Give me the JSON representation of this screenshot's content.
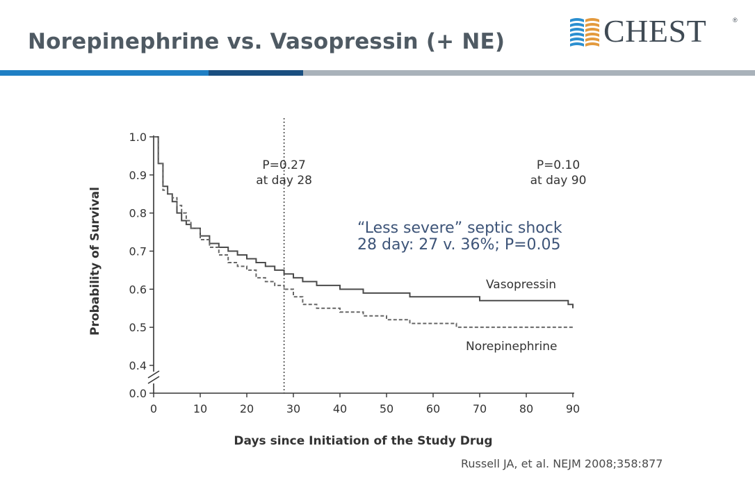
{
  "slide": {
    "title": "Norepinephrine vs. Vasopressin (+ NE)",
    "logo_text": "CHEST",
    "logo_mark": "®",
    "citation": "Russell JA, et al. NEJM 2008;358:877"
  },
  "colors": {
    "title": "#4f5a63",
    "rule_blue": "#1f7fc4",
    "rule_dark": "#1a4f80",
    "rule_gray": "#a9b2ba",
    "logo_blue": "#2b8fd0",
    "logo_orange": "#e39a3e",
    "annotation": "#3d5478",
    "vasopressin": "#4a4a4a",
    "norepinephrine": "#666666"
  },
  "chart_data": {
    "type": "line",
    "title": "",
    "xlabel": "Days since Initiation of the Study Drug",
    "ylabel": "Probability of Survival",
    "xlim": [
      0,
      90
    ],
    "ylim": [
      0.4,
      1.0
    ],
    "y_axis_break": true,
    "x_ticks": [
      "0",
      "10",
      "20",
      "30",
      "40",
      "50",
      "60",
      "70",
      "80",
      "90"
    ],
    "x_tick_values": [
      0,
      10,
      20,
      30,
      40,
      50,
      60,
      70,
      80,
      90
    ],
    "y_ticks": [
      "1.0",
      "0.9",
      "0.8",
      "0.7",
      "0.6",
      "0.5",
      "0.4",
      "0.0"
    ],
    "y_tick_values": [
      1.0,
      0.9,
      0.8,
      0.7,
      0.6,
      0.5,
      0.4
    ],
    "y_zero_label": "0.0",
    "series": [
      {
        "name": "Vasopressin",
        "style": "solid",
        "x": [
          0,
          1,
          2,
          3,
          4,
          5,
          6,
          7,
          8,
          10,
          12,
          14,
          16,
          18,
          20,
          22,
          24,
          26,
          28,
          30,
          32,
          35,
          40,
          45,
          50,
          55,
          60,
          65,
          70,
          75,
          80,
          85,
          89,
          90
        ],
        "y": [
          1.0,
          0.93,
          0.87,
          0.85,
          0.83,
          0.8,
          0.78,
          0.77,
          0.76,
          0.74,
          0.72,
          0.71,
          0.7,
          0.69,
          0.68,
          0.67,
          0.66,
          0.65,
          0.64,
          0.63,
          0.62,
          0.61,
          0.6,
          0.59,
          0.59,
          0.58,
          0.58,
          0.58,
          0.57,
          0.57,
          0.57,
          0.57,
          0.56,
          0.55
        ]
      },
      {
        "name": "Norepinephrine",
        "style": "dashed",
        "x": [
          0,
          1,
          2,
          3,
          4,
          5,
          6,
          7,
          8,
          10,
          12,
          14,
          16,
          18,
          20,
          22,
          24,
          26,
          28,
          30,
          32,
          35,
          40,
          45,
          50,
          55,
          60,
          65,
          70,
          75,
          80,
          85,
          90
        ],
        "y": [
          1.0,
          0.93,
          0.86,
          0.85,
          0.84,
          0.82,
          0.8,
          0.78,
          0.76,
          0.73,
          0.71,
          0.69,
          0.67,
          0.66,
          0.65,
          0.63,
          0.62,
          0.61,
          0.6,
          0.58,
          0.56,
          0.55,
          0.54,
          0.53,
          0.52,
          0.51,
          0.51,
          0.5,
          0.5,
          0.5,
          0.5,
          0.5,
          0.5
        ]
      }
    ],
    "reference_line": {
      "x": 28,
      "style": "dotted"
    },
    "annotations": [
      {
        "id": "p28",
        "lines": [
          "P=0.27",
          "at day 28"
        ],
        "x": 28,
        "y": 0.95
      },
      {
        "id": "p90",
        "lines": [
          "P=0.10",
          "at day 90"
        ],
        "x": 80,
        "y": 0.95
      },
      {
        "id": "severe",
        "lines": [
          "“Less severe” septic shock",
          "28 day: 27 v. 36%; P=0.05"
        ],
        "x": 44,
        "y": 0.82
      },
      {
        "id": "vaso-label",
        "lines": [
          "Vasopressin"
        ],
        "x": 80,
        "y": 0.6
      },
      {
        "id": "ne-label",
        "lines": [
          "Norepinephrine"
        ],
        "x": 80,
        "y": 0.48
      }
    ]
  }
}
